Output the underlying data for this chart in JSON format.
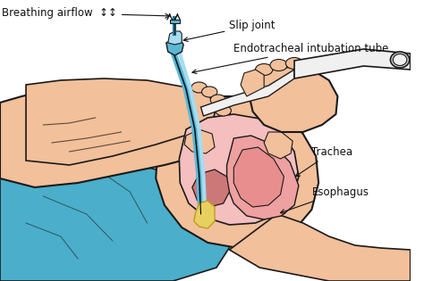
{
  "background_color": "#ffffff",
  "skin_color": "#F2C09A",
  "skin_shadow": "#D9956A",
  "blue_garment": "#4BAECA",
  "blue_light": "#7DCFE0",
  "pink_throat": "#E88E8E",
  "pink_light": "#F5BFBF",
  "pink_medium": "#EFA0A0",
  "dark_outline": "#1a1a1a",
  "tube_blue": "#5BB8D4",
  "tube_light": "#A8DCF0",
  "tube_dark": "#2A7A9A",
  "yellow_tip": "#E8D060",
  "white_tube": "#F0F0F0",
  "gray_tube": "#C8C8C8",
  "text_color": "#111111",
  "label_fontsize": 8.5,
  "labels": {
    "breathing": "Breathing airflow",
    "slip_joint": "Slip joint",
    "endo_tube": "Endotracheal intubation tube",
    "trachea": "Trachea",
    "esophagus": "Esophagus"
  }
}
